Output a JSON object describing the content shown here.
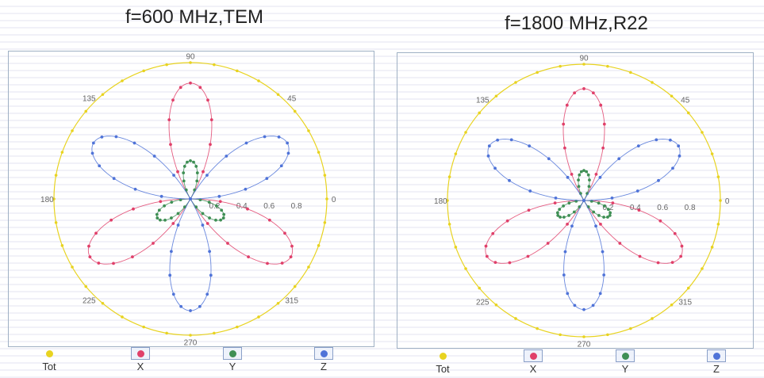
{
  "chart_data": [
    {
      "type": "polar",
      "title": "f=600 MHz,TEM",
      "angle_labels": [
        "0",
        "45",
        "90",
        "135",
        "180",
        "225",
        "270",
        "315"
      ],
      "radial_ticks": [
        "0.2",
        "0.4",
        "0.6",
        "0.8"
      ],
      "rlim": [
        0,
        1
      ],
      "legend": [
        "Tot",
        "X",
        "Y",
        "Z"
      ],
      "series": [
        {
          "name": "Tot",
          "color": "#e8d320",
          "shape": "circle",
          "r": 1.0
        },
        {
          "name": "X",
          "color": "#e0406a",
          "shape": "lobes",
          "amplitude": 0.85,
          "petals": 3,
          "rotation_deg": 90
        },
        {
          "name": "Y",
          "color": "#3f8f55",
          "shape": "lobes",
          "amplitude": 0.28,
          "petals": 3,
          "rotation_deg": -30
        },
        {
          "name": "Z",
          "color": "#4f73d8",
          "shape": "lobes",
          "amplitude": 0.82,
          "petals": 3,
          "rotation_deg": 30
        }
      ]
    },
    {
      "type": "polar",
      "title": "f=1800 MHz,R22",
      "angle_labels": [
        "0",
        "45",
        "90",
        "135",
        "180",
        "225",
        "270",
        "315"
      ],
      "radial_ticks": [
        "0.2",
        "0.4",
        "0.6",
        "0.8"
      ],
      "rlim": [
        0,
        1
      ],
      "legend": [
        "Tot",
        "X",
        "Y",
        "Z"
      ],
      "series": [
        {
          "name": "Tot",
          "color": "#e8d320",
          "shape": "circle",
          "r": 1.0
        },
        {
          "name": "X",
          "color": "#e0406a",
          "shape": "lobes",
          "amplitude": 0.82,
          "petals": 3,
          "rotation_deg": 90
        },
        {
          "name": "Y",
          "color": "#3f8f55",
          "shape": "lobes",
          "amplitude": 0.22,
          "petals": 3,
          "rotation_deg": -30
        },
        {
          "name": "Z",
          "color": "#4f73d8",
          "shape": "lobes",
          "amplitude": 0.8,
          "petals": 3,
          "rotation_deg": 30
        }
      ]
    }
  ]
}
